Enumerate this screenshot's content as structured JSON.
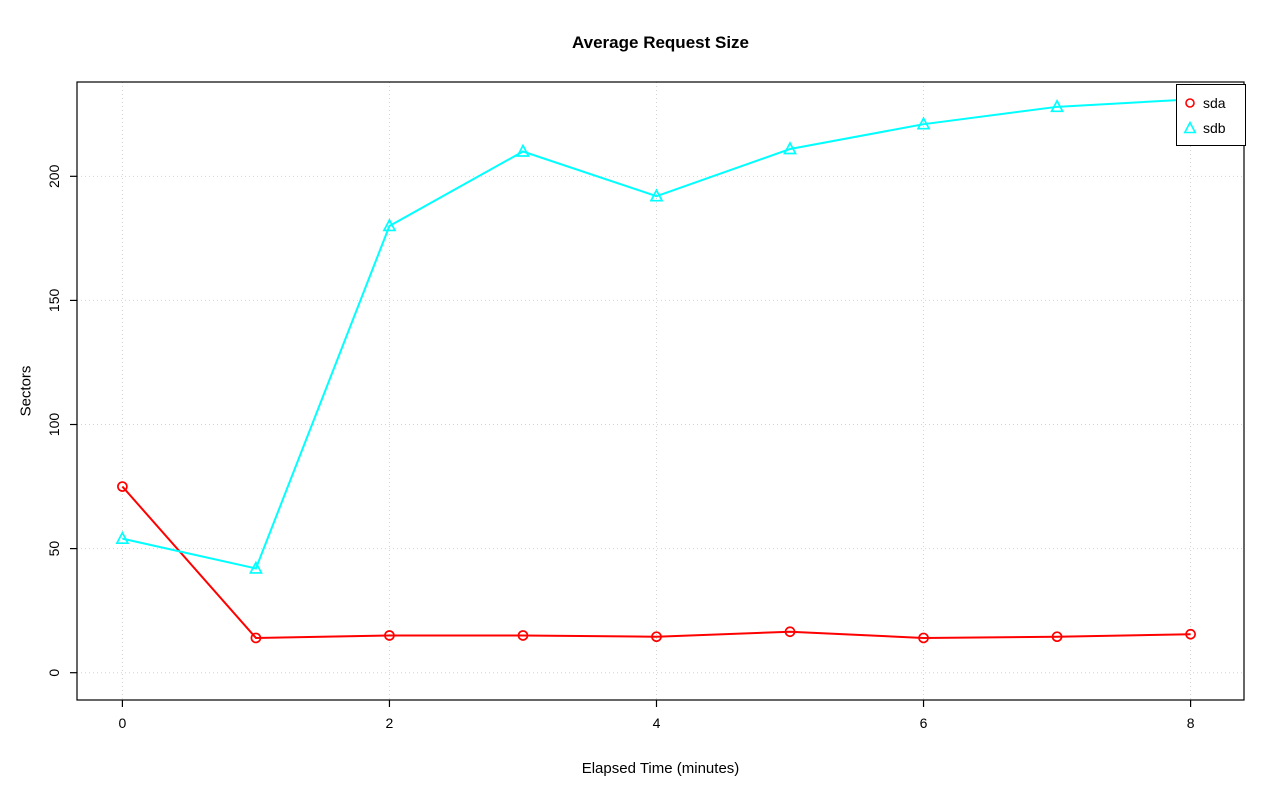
{
  "chart_data": {
    "type": "line",
    "title": "Average Request Size",
    "xlabel": "Elapsed Time (minutes)",
    "ylabel": "Sectors",
    "x": [
      0,
      1,
      2,
      3,
      4,
      5,
      6,
      7,
      8
    ],
    "series": [
      {
        "name": "sda",
        "color": "#ff0000",
        "marker": "circle",
        "values": [
          75,
          14,
          15,
          15,
          14.5,
          16.5,
          14,
          14.5,
          15.5
        ]
      },
      {
        "name": "sdb",
        "color": "#00ffff",
        "marker": "triangle",
        "values": [
          54,
          42,
          180,
          210,
          192,
          211,
          221,
          228,
          231
        ]
      }
    ],
    "x_ticks": [
      0,
      2,
      4,
      6,
      8
    ],
    "y_ticks": [
      0,
      50,
      100,
      150,
      200
    ],
    "xlim": [
      -0.34,
      8.4
    ],
    "ylim": [
      -11,
      238
    ],
    "grid": true,
    "grid_color": "#d3d3d3",
    "axis_color": "#000000",
    "legend_position": "top-right"
  }
}
